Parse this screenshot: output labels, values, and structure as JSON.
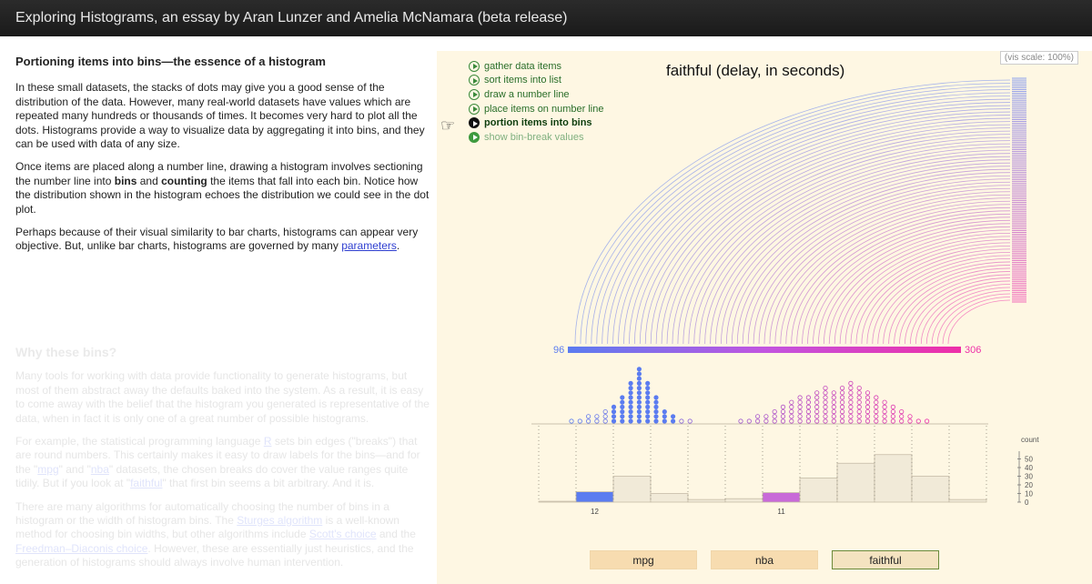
{
  "header": {
    "title": "Exploring Histograms, an essay by Aran Lunzer and Amelia McNamara (beta release)"
  },
  "essay": {
    "heading": "Portioning items into bins—the essence of a histogram",
    "p1": "In these small datasets, the stacks of dots may give you a good sense of the distribution of the data. However, many real-world datasets have values which are repeated many hundreds or thousands of times. It becomes very hard to plot all the dots. Histograms provide a way to visualize data by aggregating it into bins, and they can be used with data of any size.",
    "p2_a": "Once items are placed along a number line, drawing a histogram involves sectioning the number line into ",
    "p2_bins": "bins",
    "p2_b": " and ",
    "p2_counting": "counting",
    "p2_c": " the items that fall into each bin. Notice how the distribution shown in the histogram echoes the distribution we could see in the dot plot.",
    "p3_a": "Perhaps because of their visual similarity to bar charts, histograms can appear very objective. But, unlike bar charts, histograms are governed by many ",
    "p3_link": "parameters",
    "p3_b": "."
  },
  "next_section": {
    "heading": "Why these bins?",
    "p1": "Many tools for working with data provide functionality to generate histograms, but most of them abstract away the defaults baked into the system. As a result, it is easy to come away with the belief that the histogram you generated is representative of the data, when in fact it is only one of a great number of possible histograms.",
    "p2_a": "For example, the statistical programming language ",
    "p2_r": "R",
    "p2_b": " sets bin edges (\"breaks\") that are round numbers. This certainly makes it easy to draw labels for the bins—and for the \"",
    "p2_mpg": "mpg",
    "p2_c": "\" and \"",
    "p2_nba": "nba",
    "p2_d": "\" datasets, the chosen breaks do cover the value ranges quite tidily. But if you look at \"",
    "p2_faithful": "faithful",
    "p2_e": "\" that first bin seems a bit arbitrary. And it is.",
    "p3_a": "There are many algorithms for automatically choosing the number of bins in a histogram or the width of histogram bins. The ",
    "p3_sturges": "Sturges algorithm",
    "p3_b": " is a well-known method for choosing bin widths, but other algorithms include ",
    "p3_scott": "Scott's choice",
    "p3_c": " and the ",
    "p3_fd": "Freedman–Diaconis choice",
    "p3_d": ". However, these are essentially just heuristics, and the generation of histograms should always involve human intervention."
  },
  "vis": {
    "scale_label": "(vis scale: 100%)",
    "steps": [
      {
        "label": "gather data items",
        "state": "done"
      },
      {
        "label": "sort items into list",
        "state": "done"
      },
      {
        "label": "draw a number line",
        "state": "done"
      },
      {
        "label": "place items on number line",
        "state": "done"
      },
      {
        "label": "portion items into bins",
        "state": "active"
      },
      {
        "label": "show bin-break values",
        "state": "next"
      }
    ],
    "hand_icon": "pointing-hand-icon",
    "datasets": [
      "mpg",
      "nba",
      "faithful"
    ],
    "selected_dataset": "faithful",
    "colors": {
      "blue": "#5b7cf0",
      "pink": "#ee2fa8",
      "purple": "#c86ad8",
      "bin_fill": "#f1ead8",
      "green": "#3a8a3a"
    }
  },
  "chart_data": {
    "type": "bar",
    "title": "faithful (delay, in seconds)",
    "x_min_label": "96",
    "x_max_label": "306",
    "y_axis_label": "count",
    "y_ticks": [
      "0",
      "10",
      "20",
      "30",
      "40",
      "50"
    ],
    "ylim": [
      0,
      55
    ],
    "bins": [
      {
        "count": 1
      },
      {
        "count": 12,
        "highlight": "blue",
        "label": "12"
      },
      {
        "count": 30
      },
      {
        "count": 10
      },
      {
        "count": 3
      },
      {
        "count": 4
      },
      {
        "count": 11,
        "highlight": "purple",
        "label": "11"
      },
      {
        "count": 28
      },
      {
        "count": 45
      },
      {
        "count": 55
      },
      {
        "count": 30
      },
      {
        "count": 3
      }
    ]
  }
}
